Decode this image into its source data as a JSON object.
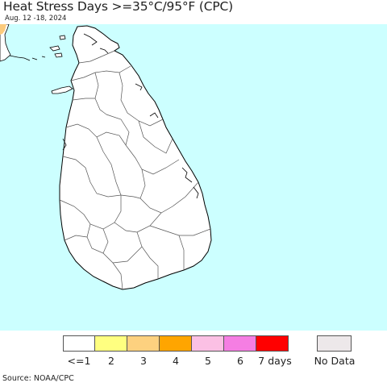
{
  "title": "Heat Stress Days >=35°C/95°F (CPC)",
  "subtitle": "Aug. 12 -18, 2024",
  "map": {
    "ocean_color": "#ccffff",
    "land_color": "#ffffff",
    "border_color": "#000000",
    "corner_patch_color": "#fccb7d"
  },
  "legend": {
    "items": [
      {
        "label": "<=1",
        "color": "#ffffff"
      },
      {
        "label": "2",
        "color": "#ffff80"
      },
      {
        "label": "3",
        "color": "#fdd17f"
      },
      {
        "label": "4",
        "color": "#ffa500"
      },
      {
        "label": "5",
        "color": "#fbc0e4"
      },
      {
        "label": "6",
        "color": "#f57ee3"
      },
      {
        "label": "7 days",
        "color": "#ff0000"
      }
    ],
    "no_data": {
      "label": "No Data",
      "color": "#ede8ea"
    }
  },
  "source": "Source: NOAA/CPC"
}
